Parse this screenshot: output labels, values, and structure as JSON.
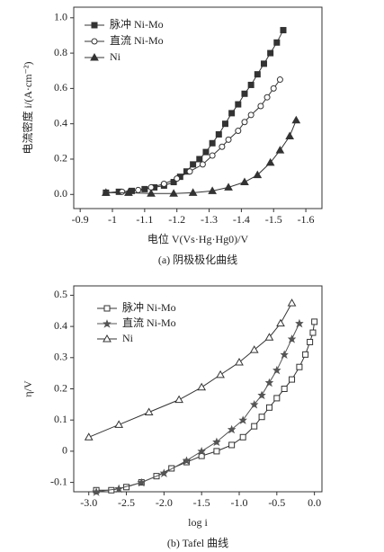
{
  "chart_data": [
    {
      "type": "line",
      "y_label": "电流密度 i/(A·cm⁻²)",
      "x_label": "电位 V(Vs·Hg·Hg0)/V",
      "caption": "(a) 阴极极化曲线",
      "xlim": [
        -0.88,
        -1.65
      ],
      "xticks": [
        -0.9,
        -1.0,
        -1.1,
        -1.2,
        -1.3,
        -1.4,
        -1.5,
        -1.6
      ],
      "ylim": [
        -0.08,
        1.06
      ],
      "yticks": [
        {
          "value": 0,
          "label": "0.0"
        },
        0.2,
        0.4,
        0.6,
        0.8,
        {
          "value": 1,
          "label": "1.0"
        }
      ],
      "legend": "upper left",
      "series": [
        {
          "name": "脉冲 Ni-Mo",
          "color": "#333333",
          "marker": "square-filled",
          "x": [
            -0.98,
            -1.02,
            -1.06,
            -1.1,
            -1.13,
            -1.16,
            -1.19,
            -1.21,
            -1.23,
            -1.25,
            -1.27,
            -1.29,
            -1.31,
            -1.33,
            -1.35,
            -1.37,
            -1.39,
            -1.41,
            -1.43,
            -1.45,
            -1.47,
            -1.49,
            -1.51,
            -1.53
          ],
          "values": [
            0.01,
            0.015,
            0.02,
            0.03,
            0.04,
            0.05,
            0.07,
            0.1,
            0.13,
            0.17,
            0.2,
            0.24,
            0.29,
            0.34,
            0.4,
            0.46,
            0.51,
            0.57,
            0.62,
            0.68,
            0.74,
            0.8,
            0.86,
            0.93
          ]
        },
        {
          "name": "直流 Ni-Mo",
          "color": "#333333",
          "marker": "circle-open",
          "x": [
            -0.98,
            -1.03,
            -1.08,
            -1.12,
            -1.16,
            -1.2,
            -1.24,
            -1.28,
            -1.31,
            -1.34,
            -1.36,
            -1.39,
            -1.41,
            -1.43,
            -1.46,
            -1.48,
            -1.5,
            -1.52
          ],
          "values": [
            0.01,
            0.015,
            0.025,
            0.04,
            0.06,
            0.09,
            0.13,
            0.17,
            0.22,
            0.27,
            0.31,
            0.36,
            0.41,
            0.45,
            0.5,
            0.55,
            0.6,
            0.65
          ]
        },
        {
          "name": "Ni",
          "color": "#333333",
          "marker": "triangle-filled",
          "x": [
            -0.98,
            -1.05,
            -1.12,
            -1.19,
            -1.25,
            -1.31,
            -1.36,
            -1.41,
            -1.45,
            -1.49,
            -1.52,
            -1.55,
            -1.57
          ],
          "values": [
            0.01,
            0.01,
            0.005,
            0.005,
            0.01,
            0.02,
            0.04,
            0.07,
            0.11,
            0.18,
            0.25,
            0.33,
            0.42
          ]
        }
      ]
    },
    {
      "type": "line",
      "y_label": "η/V",
      "x_label": "log i",
      "caption": "(b) Tafel 曲线",
      "xlim": [
        -3.2,
        0.1
      ],
      "xticks": [
        {
          "value": -3,
          "label": "-3.0"
        },
        -2.5,
        {
          "value": -2,
          "label": "-2.0"
        },
        -1.5,
        {
          "value": -1,
          "label": "-1.0"
        },
        -0.5,
        {
          "value": 0,
          "label": "0.0"
        }
      ],
      "ylim": [
        -0.13,
        0.53
      ],
      "yticks": [
        -0.1,
        0,
        0.1,
        0.2,
        0.3,
        0.4,
        0.5
      ],
      "legend": "upper left",
      "series": [
        {
          "name": "脉冲 Ni-Mo",
          "color": "#333333",
          "marker": "square-open",
          "x": [
            -2.9,
            -2.7,
            -2.5,
            -2.3,
            -2.1,
            -1.9,
            -1.7,
            -1.5,
            -1.3,
            -1.1,
            -0.95,
            -0.8,
            -0.7,
            -0.6,
            -0.5,
            -0.4,
            -0.3,
            -0.2,
            -0.12,
            -0.06,
            -0.02,
            0
          ],
          "values": [
            -0.125,
            -0.125,
            -0.115,
            -0.1,
            -0.08,
            -0.055,
            -0.035,
            -0.015,
            0,
            0.02,
            0.045,
            0.08,
            0.11,
            0.14,
            0.17,
            0.2,
            0.23,
            0.27,
            0.31,
            0.35,
            0.38,
            0.415
          ]
        },
        {
          "name": "直流 Ni-Mo",
          "color": "#555555",
          "marker": "star",
          "x": [
            -2.9,
            -2.6,
            -2.3,
            -2,
            -1.7,
            -1.5,
            -1.3,
            -1.1,
            -0.95,
            -0.8,
            -0.7,
            -0.6,
            -0.5,
            -0.4,
            -0.3,
            -0.2
          ],
          "values": [
            -0.13,
            -0.12,
            -0.1,
            -0.07,
            -0.03,
            0,
            0.03,
            0.07,
            0.1,
            0.15,
            0.18,
            0.22,
            0.26,
            0.31,
            0.36,
            0.41
          ]
        },
        {
          "name": "Ni",
          "color": "#333333",
          "marker": "triangle-open",
          "x": [
            -3,
            -2.6,
            -2.2,
            -1.8,
            -1.5,
            -1.25,
            -1,
            -0.8,
            -0.6,
            -0.45,
            -0.3
          ],
          "values": [
            0.045,
            0.085,
            0.125,
            0.165,
            0.205,
            0.245,
            0.285,
            0.325,
            0.365,
            0.41,
            0.475
          ]
        }
      ]
    }
  ]
}
